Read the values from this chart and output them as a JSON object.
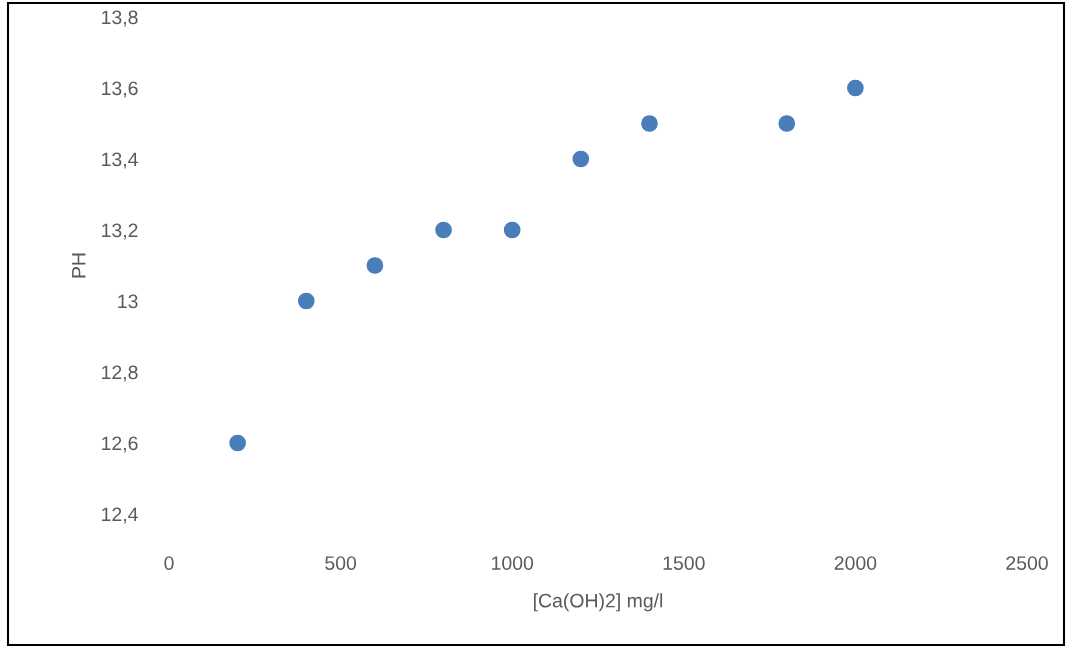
{
  "chart_data": {
    "type": "scatter",
    "xlabel": "[Ca(OH)2] mg/l",
    "ylabel": "PH",
    "marker": "circle",
    "x": [
      200,
      400,
      600,
      800,
      1000,
      1200,
      1400,
      1800,
      2000
    ],
    "series": [
      {
        "color": "#4a7ebb",
        "values": [
          12.6,
          13.0,
          13.1,
          13.2,
          13.2,
          13.4,
          13.5,
          13.5,
          13.6
        ]
      }
    ],
    "xlim": [
      0,
      2500
    ],
    "xticks": [
      0,
      500,
      1000,
      1500,
      2000,
      2500
    ],
    "ylim": [
      12.4,
      13.8
    ],
    "yticks": [
      {
        "value": 12.4,
        "label": "12,4"
      },
      {
        "value": 12.6,
        "label": "12,6"
      },
      {
        "value": 12.8,
        "label": "12,8"
      },
      13,
      {
        "value": 13.2,
        "label": "13,2"
      },
      {
        "value": 13.4,
        "label": "13,4"
      },
      {
        "value": 13.6,
        "label": "13,6"
      },
      {
        "value": 13.8,
        "label": "13,8"
      }
    ]
  }
}
